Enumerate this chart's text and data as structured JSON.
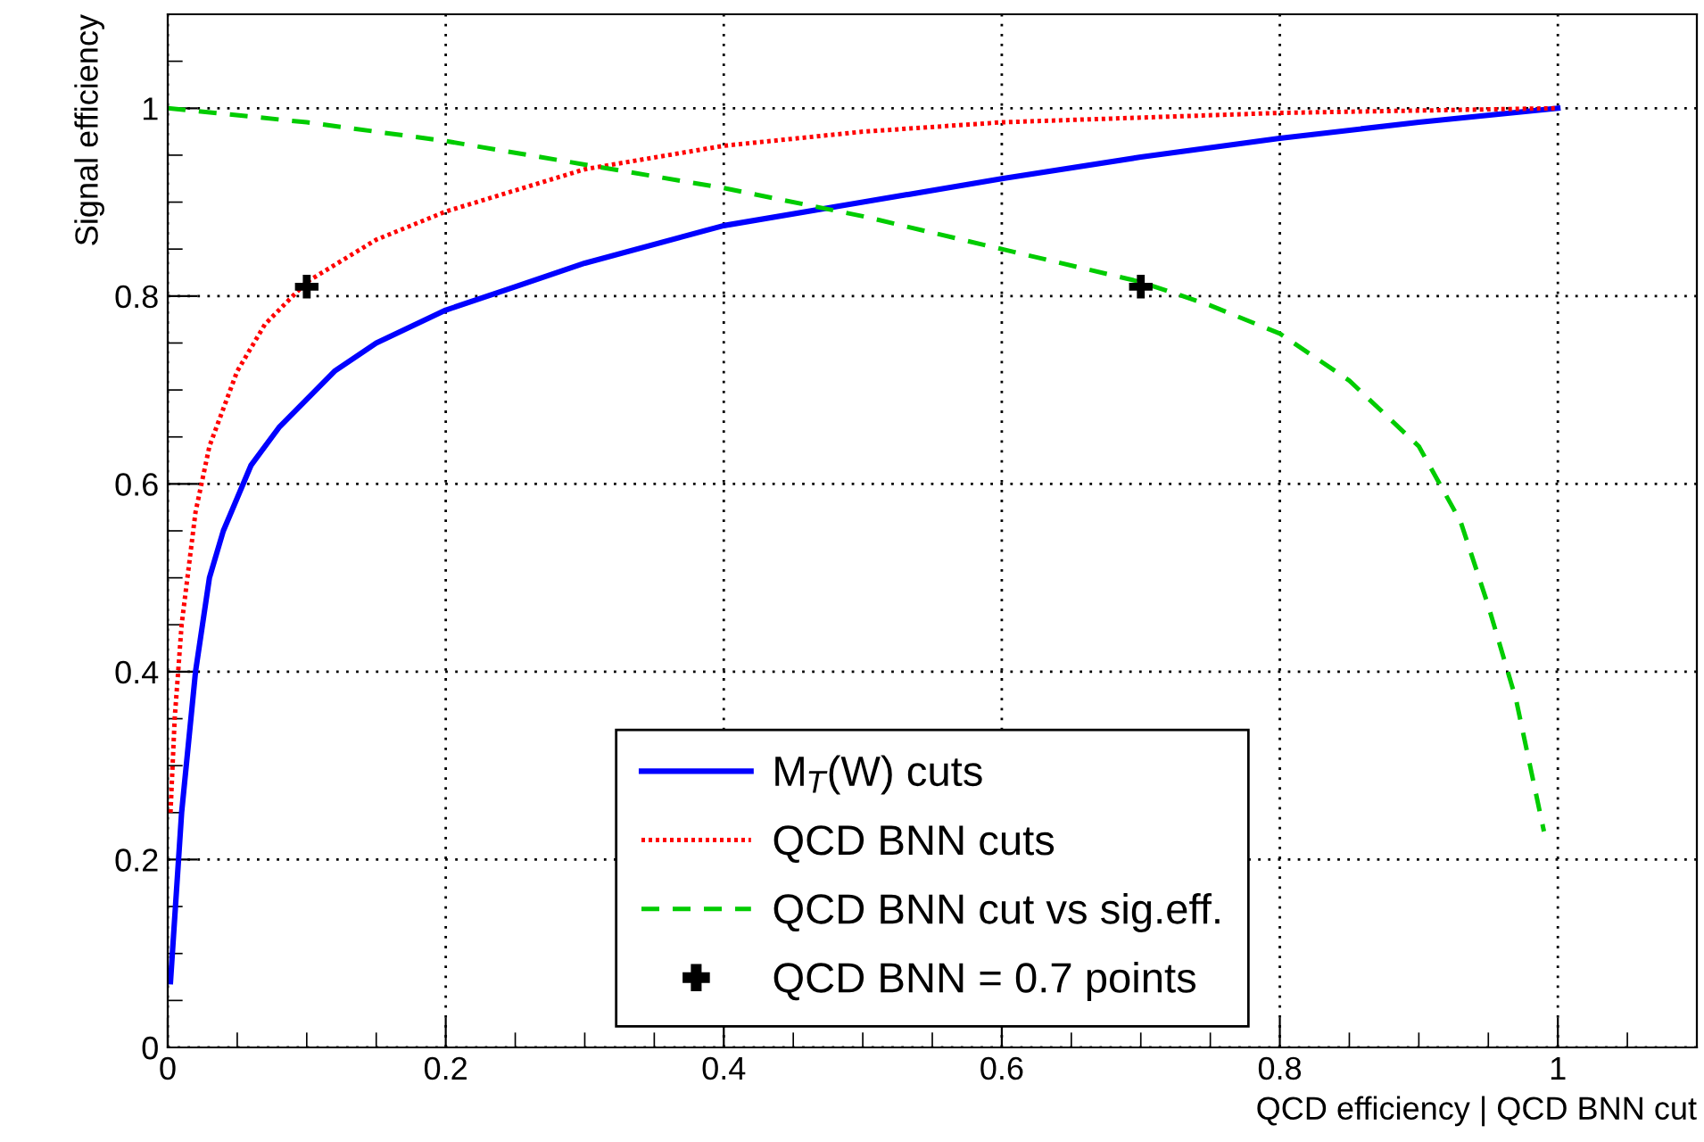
{
  "chart_data": {
    "type": "line",
    "xlabel": "QCD efficiency | QCD BNN cut",
    "ylabel": "Signal efficiency",
    "xlim": [
      0,
      1.1
    ],
    "ylim": [
      0,
      1.1
    ],
    "xticks": [
      0,
      0.2,
      0.4,
      0.6,
      0.8,
      1
    ],
    "yticks": [
      0,
      0.2,
      0.4,
      0.6,
      0.8,
      1
    ],
    "grid": true,
    "legend": "bottom",
    "series": [
      {
        "name": "M$_{T}$(W) cuts",
        "color": "#0000ff",
        "line_style": "solid",
        "x": [
          0.002,
          0.01,
          0.02,
          0.03,
          0.04,
          0.06,
          0.08,
          0.1,
          0.12,
          0.15,
          0.2,
          0.25,
          0.3,
          0.4,
          0.5,
          0.6,
          0.7,
          0.8,
          0.9,
          1.0
        ],
        "values": [
          0.07,
          0.25,
          0.4,
          0.5,
          0.55,
          0.62,
          0.66,
          0.69,
          0.72,
          0.75,
          0.785,
          0.81,
          0.835,
          0.875,
          0.9,
          0.925,
          0.948,
          0.968,
          0.985,
          1.0
        ]
      },
      {
        "name": "QCD BNN cuts",
        "color": "#ff0000",
        "line_style": "dotted",
        "x": [
          0.002,
          0.005,
          0.01,
          0.02,
          0.03,
          0.05,
          0.07,
          0.09,
          0.1,
          0.15,
          0.2,
          0.3,
          0.4,
          0.5,
          0.6,
          0.8,
          1.0
        ],
        "values": [
          0.25,
          0.35,
          0.45,
          0.57,
          0.64,
          0.72,
          0.77,
          0.8,
          0.815,
          0.86,
          0.89,
          0.935,
          0.96,
          0.975,
          0.985,
          0.995,
          1.0
        ]
      },
      {
        "name": "QCD BNN cut vs sig.eff.",
        "color": "#00cc00",
        "line_style": "dashed",
        "x": [
          0,
          0.1,
          0.2,
          0.3,
          0.4,
          0.5,
          0.6,
          0.7,
          0.75,
          0.8,
          0.85,
          0.9,
          0.93,
          0.95,
          0.97,
          0.98,
          0.99
        ],
        "values": [
          1.0,
          0.985,
          0.965,
          0.94,
          0.915,
          0.885,
          0.85,
          0.815,
          0.79,
          0.76,
          0.71,
          0.64,
          0.56,
          0.47,
          0.37,
          0.3,
          0.23
        ]
      },
      {
        "name": "QCD BNN = 0.7 points",
        "type": "scatter",
        "color": "#000000",
        "marker": "cross",
        "x": [
          0.1,
          0.7
        ],
        "values": [
          0.81,
          0.81
        ]
      }
    ]
  }
}
